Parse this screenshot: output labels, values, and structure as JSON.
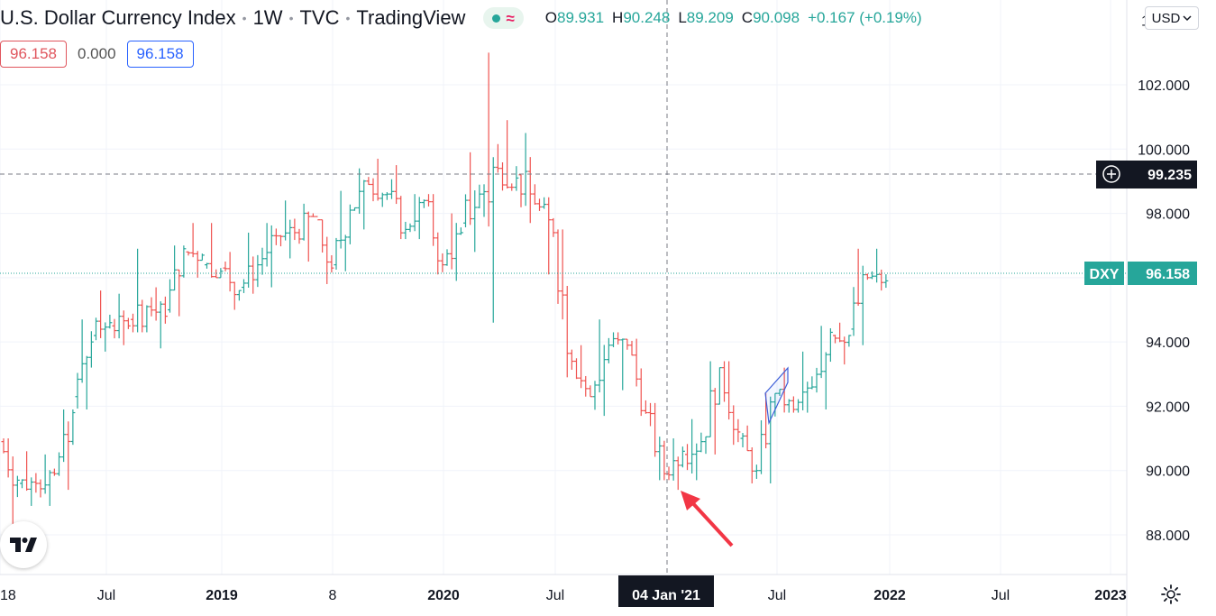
{
  "header": {
    "title": "U.S. Dollar Currency Index",
    "interval": "1W",
    "exchange": "TVC",
    "platform": "TradingView",
    "ohlc": {
      "o_label": "O",
      "o": "89.931",
      "h_label": "H",
      "h": "90.248",
      "l_label": "L",
      "l": "89.209",
      "c_label": "C",
      "c": "90.098",
      "change": "+0.167 (+0.19%)"
    }
  },
  "inputs": {
    "left_value": "96.158",
    "middle_value": "0.000",
    "right_value": "96.158"
  },
  "currency": "USD",
  "crosshair_price": "99.235",
  "crosshair_date": "04 Jan '21",
  "last_price": {
    "symbol": "DXY",
    "value": "96.158"
  },
  "colors": {
    "up": "#26a69a",
    "down": "#ef5350",
    "accent": "#2962ff",
    "marker": "#f23645"
  },
  "chart_data": {
    "type": "ohlc",
    "ylim": [
      87,
      103.5
    ],
    "y_ticks": [
      "88.000",
      "90.000",
      "92.000",
      "94.000",
      "96.000",
      "98.000",
      "100.000",
      "102.000"
    ],
    "x_ticks": [
      "18",
      "Jul",
      "2019",
      "8",
      "2020",
      "Jul",
      "Jul",
      "2022",
      "Jul",
      "2023"
    ],
    "series": [
      {
        "time": [
          "2018-01",
          "2018-02",
          "2018-03",
          "2018-04",
          "2018-05",
          "2018-06",
          "2018-07",
          "2018-08",
          "2018-09",
          "2018-10",
          "2018-11",
          "2018-12",
          "2019-01",
          "2019-02",
          "2019-03",
          "2019-04",
          "2019-05",
          "2019-06",
          "2019-07",
          "2019-08",
          "2019-09",
          "2019-10",
          "2019-11",
          "2019-12",
          "2020-01",
          "2020-02",
          "2020-03",
          "2020-04",
          "2020-05",
          "2020-06",
          "2020-07",
          "2020-08",
          "2020-09",
          "2020-10",
          "2020-11",
          "2020-12",
          "2021-01",
          "2021-02",
          "2021-03",
          "2021-04",
          "2021-05",
          "2021-06",
          "2021-07",
          "2021-08",
          "2021-09",
          "2021-10",
          "2021-11",
          "2021-12"
        ],
        "open": [
          90.9,
          89.6,
          89.6,
          89.9,
          92.3,
          94.2,
          94.5,
          94.7,
          95.1,
          95.0,
          96.8,
          96.4,
          96.3,
          95.7,
          96.4,
          97.3,
          97.4,
          97.9,
          96.4,
          98.1,
          98.9,
          98.6,
          97.5,
          98.4,
          96.4,
          97.7,
          98.6,
          99.4,
          99.2,
          98.3,
          97.4,
          93.4,
          92.3,
          93.9,
          93.9,
          91.8,
          89.9,
          90.5,
          90.9,
          93.2,
          91.0,
          90.0,
          92.4,
          91.9,
          92.6,
          94.2,
          94.4,
          96.0
        ],
        "high": [
          91.0,
          90.6,
          90.5,
          91.9,
          94.7,
          95.6,
          95.5,
          96.9,
          95.7,
          97.0,
          97.7,
          97.7,
          96.8,
          97.4,
          97.7,
          98.4,
          98.3,
          97.8,
          98.7,
          99.4,
          99.7,
          99.5,
          98.6,
          98.6,
          98.0,
          99.9,
          103.0,
          100.9,
          100.5,
          98.5,
          97.5,
          93.9,
          94.7,
          94.3,
          94.1,
          92.1,
          91.0,
          91.6,
          93.4,
          93.4,
          91.4,
          92.4,
          93.2,
          93.7,
          94.5,
          94.6,
          96.9,
          96.9
        ],
        "low": [
          88.3,
          88.9,
          88.9,
          89.4,
          91.9,
          93.7,
          93.9,
          94.3,
          93.8,
          94.8,
          96.0,
          96.0,
          95.0,
          95.5,
          95.7,
          96.6,
          96.5,
          95.8,
          96.2,
          97.5,
          98.2,
          97.2,
          97.2,
          96.1,
          95.9,
          96.8,
          94.6,
          98.7,
          97.7,
          96.1,
          92.9,
          92.3,
          91.7,
          92.5,
          91.7,
          89.7,
          89.4,
          89.7,
          90.5,
          90.8,
          89.6,
          89.6,
          91.8,
          91.8,
          91.9,
          93.3,
          93.9,
          95.6
        ],
        "close": [
          89.7,
          89.6,
          89.9,
          91.8,
          94.0,
          94.6,
          94.5,
          95.1,
          94.8,
          96.9,
          96.7,
          96.2,
          95.6,
          96.4,
          97.3,
          97.4,
          97.9,
          96.3,
          98.1,
          98.9,
          98.6,
          97.5,
          98.4,
          96.4,
          97.4,
          98.6,
          99.4,
          99.1,
          98.3,
          97.4,
          93.4,
          92.3,
          93.9,
          93.9,
          91.8,
          89.9,
          90.6,
          90.9,
          93.2,
          91.2,
          90.0,
          92.4,
          91.9,
          92.6,
          94.3,
          94.2,
          96.0,
          95.9
        ]
      }
    ],
    "annotations": [
      "parallel-channel",
      "arrow"
    ]
  }
}
